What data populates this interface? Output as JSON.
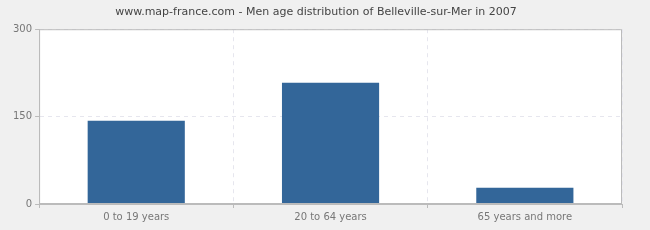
{
  "chart_data": {
    "type": "bar",
    "title": "www.map-france.com - Men age distribution of Belleville-sur-Mer in 2007",
    "categories": [
      "0 to 19 years",
      "20 to 64 years",
      "65 years and more"
    ],
    "values": [
      143,
      208,
      28
    ],
    "color": "#336699",
    "ylim": [
      0,
      300
    ],
    "yticks": [
      0,
      150,
      300
    ],
    "grid": true
  }
}
